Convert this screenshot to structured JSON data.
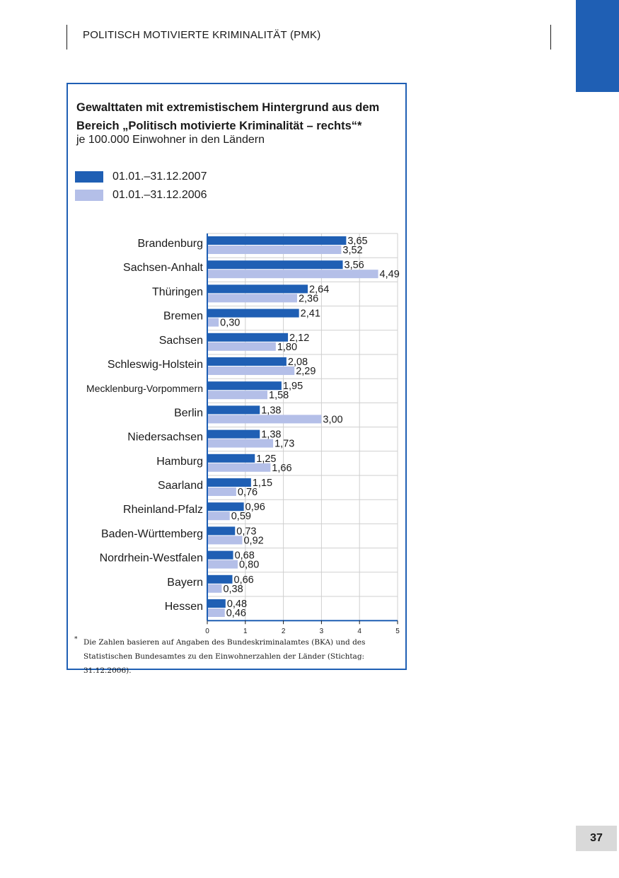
{
  "header": {
    "title": "POLITISCH MOTIVIERTE KRIMINALITÄT (PMK)"
  },
  "page": {
    "number": "37"
  },
  "colors": {
    "accent": "#1f5fb4",
    "series_2007": "#1f5fb4",
    "series_2006": "#b4bfe8",
    "grid": "#cfcfcf"
  },
  "chart_data": {
    "type": "bar",
    "orientation": "horizontal",
    "title": "Gewalttaten mit extremistischem Hintergrund aus dem Bereich „Politisch motivierte Kriminalität – rechts“*",
    "subtitle": "je 100.000 Einwohner in den Ländern",
    "categories": [
      "Brandenburg",
      "Sachsen-Anhalt",
      "Thüringen",
      "Bremen",
      "Sachsen",
      "Schleswig-Holstein",
      "Mecklenburg-Vorpommern",
      "Berlin",
      "Niedersachsen",
      "Hamburg",
      "Saarland",
      "Rheinland-Pfalz",
      "Baden-Württemberg",
      "Nordrhein-Westfalen",
      "Bayern",
      "Hessen"
    ],
    "series": [
      {
        "name": "01.01.–31.12.2007",
        "values": [
          3.65,
          3.56,
          2.64,
          2.41,
          2.12,
          2.08,
          1.95,
          1.38,
          1.38,
          1.25,
          1.15,
          0.96,
          0.73,
          0.68,
          0.66,
          0.48
        ],
        "labels": [
          "3,65",
          "3,56",
          "2,64",
          "2,41",
          "2,12",
          "2,08",
          "1,95",
          "1,38",
          "1,38",
          "1,25",
          "1,15",
          "0,96",
          "0,73",
          "0,68",
          "0,66",
          "0,48"
        ]
      },
      {
        "name": "01.01.–31.12.2006",
        "values": [
          3.52,
          4.49,
          2.36,
          0.3,
          1.8,
          2.29,
          1.58,
          3.0,
          1.73,
          1.66,
          0.76,
          0.59,
          0.92,
          0.8,
          0.38,
          0.46
        ],
        "labels": [
          "3,52",
          "4,49",
          "2,36",
          "0,30",
          "1,80",
          "2,29",
          "1,58",
          "3,00",
          "1,73",
          "1,66",
          "0,76",
          "0,59",
          "0,92",
          "0,80",
          "0,38",
          "0,46"
        ]
      }
    ],
    "xlim": [
      0,
      5
    ],
    "xticks": [
      "0",
      "1",
      "2",
      "3",
      "4",
      "5"
    ],
    "grid": true,
    "legend_position": "top-left",
    "footnote_mark": "*",
    "footnote": "Die Zahlen basieren auf Angaben des Bundeskriminalamtes (BKA) und des Statistischen Bundesamtes zu den Einwohnerzahlen der Länder (Stichtag: 31.12.2006)."
  }
}
